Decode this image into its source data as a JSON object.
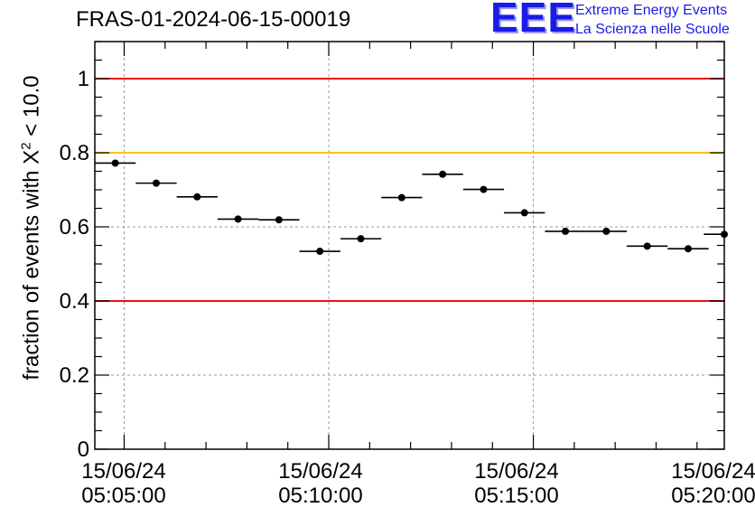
{
  "header": {
    "title": "FRAS-01-2024-06-15-00019",
    "logo_letters": "EEE",
    "logo_line1": "Extreme Energy Events",
    "logo_line2": "La Scienza nelle Scuole"
  },
  "axes": {
    "ylabel_prefix": "fraction of events with X",
    "ylabel_sup": "2",
    "ylabel_suffix": " < 10.0",
    "xticks": [
      {
        "date": "15/06/24",
        "time": "05:05:00"
      },
      {
        "date": "15/06/24",
        "time": "05:10:00"
      },
      {
        "date": "15/06/24",
        "time": "05:15:00"
      },
      {
        "date": "15/06/24",
        "time": "05:20:00"
      }
    ]
  },
  "chart_data": {
    "type": "scatter",
    "title": "FRAS-01-2024-06-15-00019",
    "xlabel": "",
    "ylabel": "fraction of events with X^2 < 10.0",
    "xlim": [
      "05:04:17",
      "05:19:40"
    ],
    "ylim": [
      0,
      1.1
    ],
    "yticks": [
      0,
      0.2,
      0.4,
      0.6,
      0.8,
      1
    ],
    "grid": true,
    "reference_lines": [
      {
        "y": 1.0,
        "color": "#e8121b"
      },
      {
        "y": 0.8,
        "color": "#ffc107"
      },
      {
        "y": 0.4,
        "color": "#e8121b"
      }
    ],
    "bin_half_width_seconds": 30,
    "points": [
      {
        "x": "05:04:47",
        "y": 0.772
      },
      {
        "x": "05:05:47",
        "y": 0.718
      },
      {
        "x": "05:06:47",
        "y": 0.681
      },
      {
        "x": "05:07:47",
        "y": 0.621
      },
      {
        "x": "05:08:47",
        "y": 0.619
      },
      {
        "x": "05:09:47",
        "y": 0.534
      },
      {
        "x": "05:10:47",
        "y": 0.568
      },
      {
        "x": "05:11:47",
        "y": 0.679
      },
      {
        "x": "05:12:47",
        "y": 0.742
      },
      {
        "x": "05:13:47",
        "y": 0.701
      },
      {
        "x": "05:14:47",
        "y": 0.638
      },
      {
        "x": "05:15:47",
        "y": 0.588
      },
      {
        "x": "05:16:47",
        "y": 0.588
      },
      {
        "x": "05:17:47",
        "y": 0.548
      },
      {
        "x": "05:18:47",
        "y": 0.541
      },
      {
        "x": "05:19:40",
        "y": 0.58
      }
    ],
    "colors": {
      "points": "#000000",
      "grid": "#9a9a9a"
    }
  }
}
